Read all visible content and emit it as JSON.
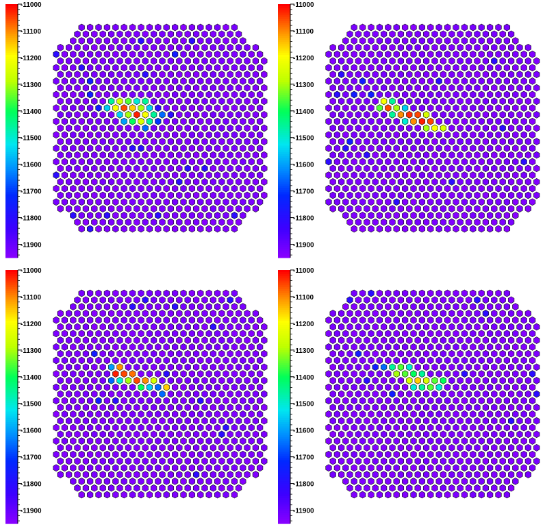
{
  "chart_data": [
    {
      "type": "heatmap",
      "title": "",
      "colorbar": {
        "range": [
          -11950,
          -11000
        ],
        "ticks": [
          "-11000",
          "-11100",
          "-11200",
          "-11300",
          "-11400",
          "-11500",
          "-11600",
          "-11700",
          "-11800",
          "-11900"
        ]
      },
      "background_value": -11930,
      "hotspot": [
        {
          "col": 6,
          "row": 11,
          "value": -11450
        },
        {
          "col": 7,
          "row": 11,
          "value": -11250
        },
        {
          "col": 8,
          "row": 11,
          "value": -11350
        },
        {
          "col": 9,
          "row": 11,
          "value": -11500
        },
        {
          "col": 10,
          "row": 11,
          "value": -11450
        },
        {
          "col": 6,
          "row": 12,
          "value": -11550
        },
        {
          "col": 7,
          "row": 12,
          "value": -11200
        },
        {
          "col": 8,
          "row": 12,
          "value": -11050
        },
        {
          "col": 9,
          "row": 12,
          "value": -11150
        },
        {
          "col": 10,
          "row": 12,
          "value": -11300
        },
        {
          "col": 11,
          "row": 12,
          "value": -11550
        },
        {
          "col": 7,
          "row": 13,
          "value": -11550
        },
        {
          "col": 8,
          "row": 13,
          "value": -11300
        },
        {
          "col": 9,
          "row": 13,
          "value": -11020
        },
        {
          "col": 10,
          "row": 13,
          "value": -11200
        },
        {
          "col": 11,
          "row": 13,
          "value": -11450
        },
        {
          "col": 12,
          "row": 13,
          "value": -11650
        },
        {
          "col": 8,
          "row": 14,
          "value": -11600
        },
        {
          "col": 9,
          "row": 14,
          "value": -11400
        },
        {
          "col": 10,
          "row": 14,
          "value": -11250
        },
        {
          "col": 11,
          "row": 14,
          "value": -11450
        },
        {
          "col": 12,
          "row": 14,
          "value": -11700
        },
        {
          "col": 10,
          "row": 15,
          "value": -11650
        },
        {
          "col": 4,
          "row": 10,
          "value": -11750
        },
        {
          "col": 5,
          "row": 12,
          "value": -11750
        },
        {
          "col": 4,
          "row": 8,
          "value": -11750
        },
        {
          "col": 14,
          "row": 4,
          "value": -11750
        }
      ]
    },
    {
      "type": "heatmap",
      "title": "",
      "colorbar": {
        "range": [
          -11950,
          -11000
        ],
        "ticks": [
          "-11000",
          "-11100",
          "-11200",
          "-11300",
          "-11400",
          "-11500",
          "-11600",
          "-11700",
          "-11800",
          "-11900"
        ]
      },
      "background_value": -11930,
      "hotspot": [
        {
          "col": 6,
          "row": 11,
          "value": -11200
        },
        {
          "col": 7,
          "row": 11,
          "value": -11450
        },
        {
          "col": 6,
          "row": 12,
          "value": -11350
        },
        {
          "col": 7,
          "row": 12,
          "value": -11050
        },
        {
          "col": 8,
          "row": 12,
          "value": -11300
        },
        {
          "col": 9,
          "row": 12,
          "value": -11550
        },
        {
          "col": 7,
          "row": 13,
          "value": -11450
        },
        {
          "col": 8,
          "row": 13,
          "value": -11100
        },
        {
          "col": 9,
          "row": 13,
          "value": -11030
        },
        {
          "col": 10,
          "row": 13,
          "value": -11050
        },
        {
          "col": 11,
          "row": 13,
          "value": -11250
        },
        {
          "col": 9,
          "row": 14,
          "value": -11500
        },
        {
          "col": 10,
          "row": 14,
          "value": -11100
        },
        {
          "col": 11,
          "row": 14,
          "value": -11020
        },
        {
          "col": 12,
          "row": 14,
          "value": -11050
        },
        {
          "col": 11,
          "row": 15,
          "value": -11300
        },
        {
          "col": 12,
          "row": 15,
          "value": -11200
        },
        {
          "col": 13,
          "row": 15,
          "value": -11250
        },
        {
          "col": 4,
          "row": 8,
          "value": -11750
        },
        {
          "col": 3,
          "row": 10,
          "value": -11750
        },
        {
          "col": 5,
          "row": 10,
          "value": -11750
        },
        {
          "col": 2,
          "row": 17,
          "value": -11750
        }
      ]
    },
    {
      "type": "heatmap",
      "title": "",
      "colorbar": {
        "range": [
          -11950,
          -11000
        ],
        "ticks": [
          "-11000",
          "-11100",
          "-11200",
          "-11300",
          "-11400",
          "-11500",
          "-11600",
          "-11700",
          "-11800",
          "-11900"
        ]
      },
      "background_value": -11930,
      "hotspot": [
        {
          "col": 6,
          "row": 11,
          "value": -11600
        },
        {
          "col": 7,
          "row": 11,
          "value": -11100
        },
        {
          "col": 7,
          "row": 12,
          "value": -11020
        },
        {
          "col": 8,
          "row": 12,
          "value": -11050
        },
        {
          "col": 9,
          "row": 12,
          "value": -11080
        },
        {
          "col": 6,
          "row": 13,
          "value": -11650
        },
        {
          "col": 7,
          "row": 13,
          "value": -11500
        },
        {
          "col": 8,
          "row": 13,
          "value": -11300
        },
        {
          "col": 9,
          "row": 13,
          "value": -11050
        },
        {
          "col": 10,
          "row": 13,
          "value": -11100
        },
        {
          "col": 11,
          "row": 13,
          "value": -11250
        },
        {
          "col": 10,
          "row": 14,
          "value": -11400
        },
        {
          "col": 11,
          "row": 14,
          "value": -11550
        },
        {
          "col": 12,
          "row": 14,
          "value": -11650
        },
        {
          "col": 13,
          "row": 14,
          "value": -11150
        },
        {
          "col": 12,
          "row": 15,
          "value": -11650
        },
        {
          "col": 4,
          "row": 9,
          "value": -11750
        },
        {
          "col": 5,
          "row": 16,
          "value": -11750
        }
      ]
    },
    {
      "type": "heatmap",
      "title": "",
      "colorbar": {
        "range": [
          -11950,
          -11000
        ],
        "ticks": [
          "-11000",
          "-11100",
          "-11200",
          "-11300",
          "-11400",
          "-11500",
          "-11600",
          "-11700",
          "-11800",
          "-11900"
        ]
      },
      "background_value": -11930,
      "hotspot": [
        {
          "col": 6,
          "row": 11,
          "value": -11650
        },
        {
          "col": 7,
          "row": 11,
          "value": -11450
        },
        {
          "col": 8,
          "row": 11,
          "value": -11350
        },
        {
          "col": 9,
          "row": 11,
          "value": -11500
        },
        {
          "col": 8,
          "row": 12,
          "value": -11300
        },
        {
          "col": 9,
          "row": 12,
          "value": -11350
        },
        {
          "col": 10,
          "row": 12,
          "value": -11400
        },
        {
          "col": 11,
          "row": 12,
          "value": -11450
        },
        {
          "col": 9,
          "row": 13,
          "value": -11250
        },
        {
          "col": 10,
          "row": 13,
          "value": -11150
        },
        {
          "col": 11,
          "row": 13,
          "value": -11250
        },
        {
          "col": 12,
          "row": 13,
          "value": -11350
        },
        {
          "col": 13,
          "row": 13,
          "value": -11400
        },
        {
          "col": 10,
          "row": 14,
          "value": -11500
        },
        {
          "col": 11,
          "row": 14,
          "value": -11450
        },
        {
          "col": 12,
          "row": 14,
          "value": -11350
        },
        {
          "col": 13,
          "row": 14,
          "value": -11500
        },
        {
          "col": 5,
          "row": 11,
          "value": -11750
        },
        {
          "col": 7,
          "row": 15,
          "value": -11750
        },
        {
          "col": 3,
          "row": 9,
          "value": -11750
        }
      ]
    }
  ]
}
